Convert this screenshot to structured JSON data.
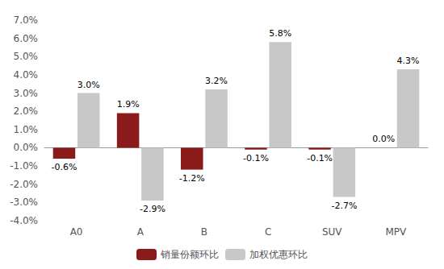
{
  "chart_data": {
    "type": "bar",
    "categories": [
      "A0",
      "A",
      "B",
      "C",
      "SUV",
      "MPV"
    ],
    "series": [
      {
        "name": "销量份额环比",
        "color": "#8B1A1A",
        "values": [
          -0.6,
          1.9,
          -1.2,
          -0.1,
          -0.1,
          0.0
        ],
        "value_labels": [
          "-0.6%",
          "1.9%",
          "-1.2%",
          "-0.1%",
          "-0.1%",
          "0.0%"
        ]
      },
      {
        "name": "加权优惠环比",
        "color": "#C8C8C8",
        "values": [
          3.0,
          -2.9,
          3.2,
          5.8,
          -2.7,
          4.3
        ],
        "value_labels": [
          "3.0%",
          "-2.9%",
          "3.2%",
          "5.8%",
          "-2.7%",
          "4.3%"
        ]
      }
    ],
    "ylim": [
      -4.0,
      7.0
    ],
    "yticks": [
      {
        "value": -4.0,
        "label": "-4.0%"
      },
      {
        "value": -3.0,
        "label": "-3.0%"
      },
      {
        "value": -2.0,
        "label": "-2.0%"
      },
      {
        "value": -1.0,
        "label": "-1.0%"
      },
      {
        "value": 0.0,
        "label": "0.0%"
      },
      {
        "value": 1.0,
        "label": "1.0%"
      },
      {
        "value": 2.0,
        "label": "2.0%"
      },
      {
        "value": 3.0,
        "label": "3.0%"
      },
      {
        "value": 4.0,
        "label": "4.0%"
      },
      {
        "value": 5.0,
        "label": "5.0%"
      },
      {
        "value": 6.0,
        "label": "6.0%"
      },
      {
        "value": 7.0,
        "label": "7.0%"
      }
    ],
    "grid": false,
    "legend": "bottom",
    "data_labels": true
  }
}
